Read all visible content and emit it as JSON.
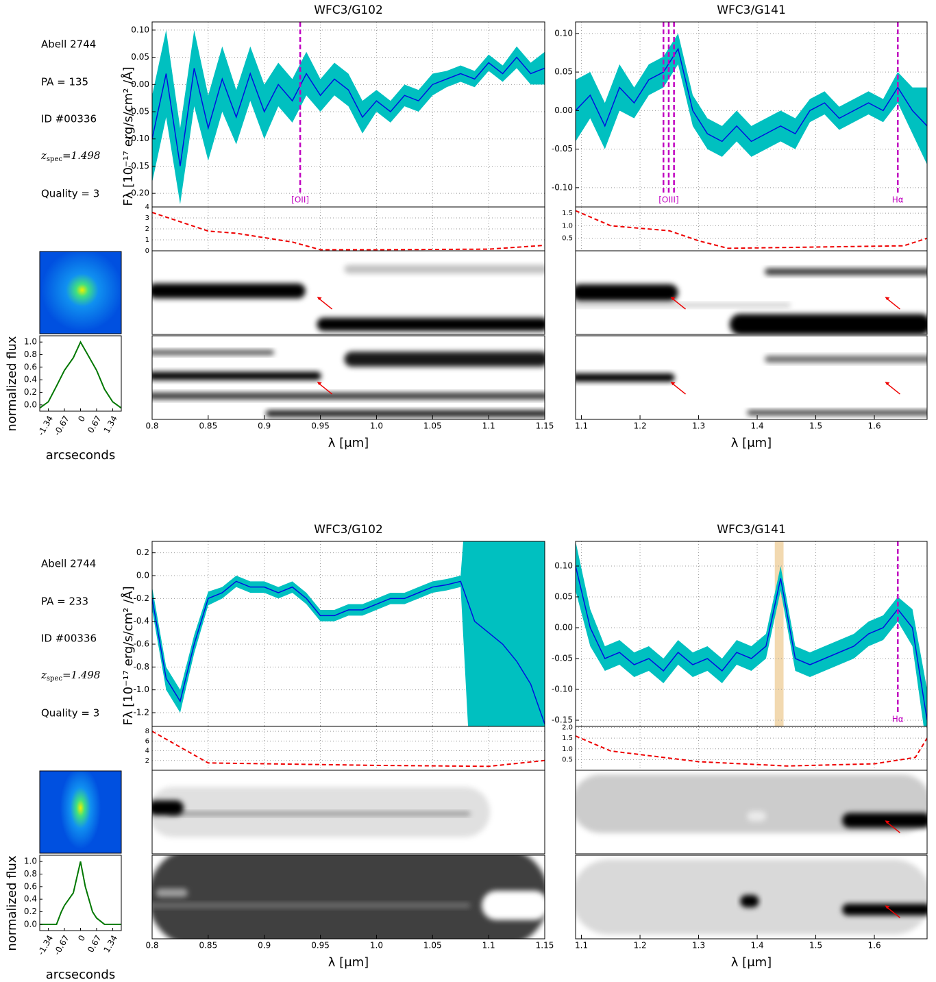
{
  "info": [
    {
      "field": "Abell 2744",
      "pa": "PA = 135",
      "id": "ID #00336",
      "z_symbol": "z",
      "z_sub": "spec",
      "z_value": "=1.498",
      "quality": "Quality = 3"
    },
    {
      "field": "Abell 2744",
      "pa": "PA = 233",
      "id": "ID #00336",
      "z_symbol": "z",
      "z_sub": "spec",
      "z_value": "=1.498",
      "quality": "Quality = 3"
    }
  ],
  "chart_data": [
    {
      "type": "line",
      "title": "WFC3/G102",
      "y_label": "Fλ [10⁻¹⁷ erg/s/cm² /Å]",
      "x_label": "λ [μm]",
      "x": [
        0.8,
        0.8125,
        0.825,
        0.8375,
        0.85,
        0.8625,
        0.875,
        0.8875,
        0.9,
        0.9125,
        0.925,
        0.9375,
        0.95,
        0.9625,
        0.975,
        0.9875,
        1.0,
        1.0125,
        1.025,
        1.0375,
        1.05,
        1.0625,
        1.075,
        1.0875,
        1.1,
        1.1125,
        1.125,
        1.1375,
        1.15
      ],
      "values": [
        -0.1,
        0.02,
        -0.15,
        0.03,
        -0.08,
        0.01,
        -0.06,
        0.02,
        -0.05,
        0.0,
        -0.03,
        0.02,
        -0.02,
        0.01,
        -0.01,
        -0.06,
        -0.03,
        -0.05,
        -0.02,
        -0.03,
        0.0,
        0.01,
        0.02,
        0.01,
        0.04,
        0.02,
        0.05,
        0.02,
        0.03
      ],
      "errors": [
        0.08,
        0.08,
        0.07,
        0.07,
        0.06,
        0.06,
        0.05,
        0.05,
        0.05,
        0.04,
        0.04,
        0.04,
        0.03,
        0.03,
        0.03,
        0.03,
        0.02,
        0.02,
        0.02,
        0.02,
        0.02,
        0.015,
        0.015,
        0.015,
        0.015,
        0.015,
        0.02,
        0.02,
        0.03
      ],
      "color": "#0010e0",
      "error_color": "#00c0c0",
      "xlim": [
        0.8,
        1.15
      ],
      "xticks": [
        0.8,
        0.85,
        0.9,
        0.95,
        {
          "value": 1.0,
          "label": "1.0"
        },
        1.05,
        1.1,
        1.15
      ],
      "ylim": [
        -0.225,
        0.115
      ],
      "yticks": [
        {
          "value": -0.2,
          "label": "-0.20"
        },
        -0.15,
        {
          "value": -0.1,
          "label": "-0.10"
        },
        -0.05,
        {
          "value": 0,
          "label": "0.00"
        },
        0.05,
        {
          "value": 0.1,
          "label": "0.10"
        }
      ],
      "grid": true,
      "lines": [
        {
          "x": [
            0.932
          ],
          "label": "[OII]"
        }
      ],
      "line_color": "#c000c0",
      "contamination": {
        "x": [
          0.8,
          0.85,
          0.875,
          0.9,
          0.925,
          0.95,
          1.0,
          1.1,
          1.15
        ],
        "values": [
          3.5,
          1.8,
          1.6,
          1.2,
          0.8,
          0.1,
          0.1,
          0.15,
          0.5
        ],
        "color": "#ee0000",
        "ylim": [
          0,
          4
        ],
        "yticks": [
          0,
          1,
          2,
          3,
          4
        ]
      }
    },
    {
      "type": "line",
      "title": "WFC3/G141",
      "x_label": "λ [μm]",
      "x": [
        1.09,
        1.115,
        1.14,
        1.165,
        1.19,
        1.215,
        1.24,
        1.265,
        1.29,
        1.315,
        1.34,
        1.365,
        1.39,
        1.415,
        1.44,
        1.465,
        1.49,
        1.515,
        1.54,
        1.565,
        1.59,
        1.615,
        1.64,
        1.665,
        1.69
      ],
      "values": [
        0.0,
        0.02,
        -0.02,
        0.03,
        0.01,
        0.04,
        0.05,
        0.08,
        0.0,
        -0.03,
        -0.04,
        -0.02,
        -0.04,
        -0.03,
        -0.02,
        -0.03,
        0.0,
        0.01,
        -0.01,
        0.0,
        0.01,
        0.0,
        0.03,
        0.0,
        -0.02
      ],
      "errors": [
        0.04,
        0.03,
        0.03,
        0.03,
        0.02,
        0.02,
        0.02,
        0.02,
        0.02,
        0.02,
        0.02,
        0.02,
        0.02,
        0.02,
        0.02,
        0.02,
        0.015,
        0.015,
        0.015,
        0.015,
        0.015,
        0.015,
        0.02,
        0.03,
        0.05
      ],
      "color": "#0010e0",
      "error_color": "#00c0c0",
      "xlim": [
        1.09,
        1.69
      ],
      "xticks": [
        1.1,
        1.2,
        1.3,
        1.4,
        1.5,
        1.6
      ],
      "ylim": [
        -0.125,
        0.115
      ],
      "yticks": [
        {
          "value": -0.1,
          "label": "-0.10"
        },
        -0.05,
        {
          "value": 0,
          "label": "0.00"
        },
        0.05,
        {
          "value": 0.1,
          "label": "0.10"
        }
      ],
      "grid": true,
      "lines": [
        {
          "x": [
            1.24,
            1.249,
            1.258
          ],
          "label": "[OIII]"
        },
        {
          "x": [
            1.64
          ],
          "label": "Hα"
        }
      ],
      "line_color": "#c000c0",
      "contamination": {
        "x": [
          1.09,
          1.15,
          1.25,
          1.3,
          1.35,
          1.5,
          1.65,
          1.69
        ],
        "values": [
          1.6,
          1.0,
          0.8,
          0.4,
          0.1,
          0.15,
          0.2,
          0.5
        ],
        "color": "#ee0000",
        "ylim": [
          0,
          1.75
        ],
        "yticks": [
          0.5,
          {
            "value": 1,
            "label": "1.0"
          },
          1.5
        ]
      }
    },
    {
      "type": "line",
      "y_label": "normalized flux",
      "x_label": "arcseconds",
      "x": [
        -1.7,
        -1.34,
        -1.0,
        -0.67,
        -0.3,
        0,
        0.3,
        0.67,
        1.0,
        1.34,
        1.7
      ],
      "values": [
        -0.05,
        0.05,
        0.3,
        0.55,
        0.75,
        1.0,
        0.8,
        0.55,
        0.25,
        0.05,
        -0.05
      ],
      "color": "#007700",
      "xlim": [
        -1.7,
        1.7
      ],
      "xticks": [
        -1.34,
        -0.67,
        0,
        0.67,
        1.34
      ],
      "ylim": [
        -0.1,
        1.1
      ],
      "yticks": [
        {
          "value": 0,
          "label": "0.0"
        },
        0.2,
        0.4,
        0.6,
        0.8,
        {
          "value": 1,
          "label": "1.0"
        }
      ]
    },
    {
      "type": "line",
      "title": "WFC3/G102",
      "y_label": "Fλ [10⁻¹⁷ erg/s/cm² /Å]",
      "x_label": "λ [μm]",
      "x": [
        0.8,
        0.8125,
        0.825,
        0.8375,
        0.85,
        0.8625,
        0.875,
        0.8875,
        0.9,
        0.9125,
        0.925,
        0.9375,
        0.95,
        0.9625,
        0.975,
        0.9875,
        1.0,
        1.0125,
        1.025,
        1.0375,
        1.05,
        1.0625,
        1.075,
        1.0875,
        1.1,
        1.1125,
        1.125,
        1.1375,
        1.15
      ],
      "values": [
        -0.2,
        -0.9,
        -1.1,
        -0.6,
        -0.2,
        -0.15,
        -0.05,
        -0.1,
        -0.1,
        -0.15,
        -0.1,
        -0.2,
        -0.35,
        -0.35,
        -0.3,
        -0.3,
        -0.25,
        -0.2,
        -0.2,
        -0.15,
        -0.1,
        -0.08,
        -0.05,
        -0.4,
        -0.5,
        -0.6,
        -0.75,
        -0.95,
        -1.3
      ],
      "errors": [
        0.1,
        0.1,
        0.1,
        0.08,
        0.06,
        0.05,
        0.05,
        0.05,
        0.05,
        0.05,
        0.05,
        0.05,
        0.05,
        0.05,
        0.05,
        0.05,
        0.05,
        0.05,
        0.05,
        0.05,
        0.05,
        0.05,
        0.05,
        2,
        2,
        2,
        2,
        2,
        2
      ],
      "color": "#0010e0",
      "error_color": "#00c0c0",
      "xlim": [
        0.8,
        1.15
      ],
      "xticks": [
        0.8,
        0.85,
        0.9,
        0.95,
        {
          "value": 1.0,
          "label": "1.0"
        },
        1.05,
        1.1,
        1.15
      ],
      "ylim": [
        -1.32,
        0.3
      ],
      "yticks": [
        -1.2,
        {
          "value": -1,
          "label": "-1.0"
        },
        -0.8,
        -0.6,
        -0.4,
        -0.2,
        {
          "value": 0,
          "label": "0.0"
        },
        0.2
      ],
      "grid": true,
      "contamination": {
        "x": [
          0.8,
          0.85,
          1.0,
          1.1,
          1.15
        ],
        "values": [
          8,
          1.5,
          1.0,
          0.8,
          2.0
        ],
        "color": "#ee0000",
        "ylim": [
          0,
          9
        ],
        "yticks": [
          2,
          4,
          6,
          8
        ]
      }
    },
    {
      "type": "line",
      "title": "WFC3/G141",
      "x_label": "λ [μm]",
      "x": [
        1.09,
        1.115,
        1.14,
        1.165,
        1.19,
        1.215,
        1.24,
        1.265,
        1.29,
        1.315,
        1.34,
        1.365,
        1.39,
        1.415,
        1.44,
        1.465,
        1.49,
        1.515,
        1.54,
        1.565,
        1.59,
        1.615,
        1.64,
        1.665,
        1.69
      ],
      "values": [
        0.1,
        0.0,
        -0.05,
        -0.04,
        -0.06,
        -0.05,
        -0.07,
        -0.04,
        -0.06,
        -0.05,
        -0.07,
        -0.04,
        -0.05,
        -0.03,
        0.08,
        -0.05,
        -0.06,
        -0.05,
        -0.04,
        -0.03,
        -0.01,
        0.0,
        0.03,
        0.0,
        -0.15
      ],
      "errors": [
        0.04,
        0.03,
        0.02,
        0.02,
        0.02,
        0.02,
        0.02,
        0.02,
        0.02,
        0.02,
        0.02,
        0.02,
        0.02,
        0.02,
        0.02,
        0.02,
        0.02,
        0.02,
        0.02,
        0.02,
        0.02,
        0.02,
        0.02,
        0.03,
        0.05
      ],
      "color": "#0010e0",
      "error_color": "#00c0c0",
      "xlim": [
        1.09,
        1.69
      ],
      "xticks": [
        1.1,
        1.2,
        1.3,
        1.4,
        1.5,
        1.6
      ],
      "ylim": [
        -0.16,
        0.14
      ],
      "yticks": [
        -0.15,
        {
          "value": -0.1,
          "label": "-0.10"
        },
        -0.05,
        {
          "value": 0,
          "label": "0.00"
        },
        0.05,
        {
          "value": 0.1,
          "label": "0.10"
        }
      ],
      "grid": true,
      "shaded_band": [
        1.43,
        1.445
      ],
      "shaded_color": "#f2d9b0",
      "lines": [
        {
          "x": [
            1.64
          ],
          "label": "Hα"
        }
      ],
      "line_color": "#c000c0",
      "contamination": {
        "x": [
          1.09,
          1.15,
          1.3,
          1.45,
          1.6,
          1.67,
          1.69
        ],
        "values": [
          1.6,
          0.9,
          0.4,
          0.2,
          0.3,
          0.6,
          1.5
        ],
        "color": "#ee0000",
        "ylim": [
          0,
          2.05
        ],
        "yticks": [
          0.5,
          {
            "value": 1,
            "label": "1.0"
          },
          1.5,
          {
            "value": 2,
            "label": "2.0"
          }
        ]
      }
    },
    {
      "type": "line",
      "y_label": "normalized flux",
      "x_label": "arcseconds",
      "x": [
        -1.7,
        -1.0,
        -0.8,
        -0.67,
        -0.3,
        0,
        0.2,
        0.5,
        0.67,
        1.0,
        1.7
      ],
      "values": [
        0.0,
        0.0,
        0.2,
        0.3,
        0.5,
        1.0,
        0.6,
        0.2,
        0.1,
        0.0,
        0.0
      ],
      "color": "#007700",
      "xlim": [
        -1.7,
        1.7
      ],
      "xticks": [
        -1.34,
        -0.67,
        0,
        0.67,
        1.34
      ],
      "ylim": [
        -0.1,
        1.1
      ],
      "yticks": [
        {
          "value": 0,
          "label": "0.0"
        },
        0.2,
        0.4,
        0.6,
        0.8,
        {
          "value": 1,
          "label": "1.0"
        }
      ]
    }
  ]
}
